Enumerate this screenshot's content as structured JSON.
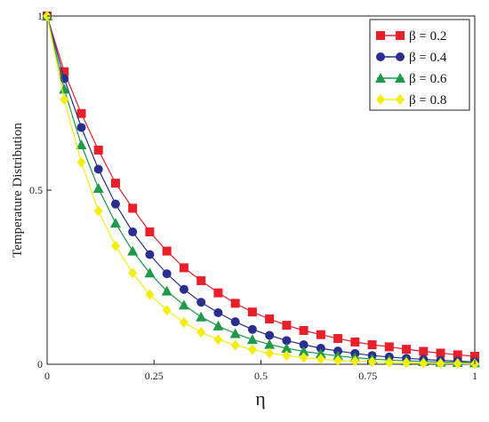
{
  "chart_data": {
    "type": "line",
    "xlabel": "η",
    "ylabel": "Temperature Distribution",
    "xlim": [
      0,
      1
    ],
    "ylim": [
      0,
      1
    ],
    "x_ticks": [
      "0",
      "0.25",
      "0.5",
      "0.75",
      "1"
    ],
    "y_ticks": [
      "0",
      "0.5",
      "1"
    ],
    "grid": false,
    "legend_position": "top-right",
    "x": [
      0,
      0.04,
      0.08,
      0.12,
      0.16,
      0.2,
      0.24,
      0.28,
      0.32,
      0.36,
      0.4,
      0.44,
      0.48,
      0.52,
      0.56,
      0.6,
      0.64,
      0.68,
      0.72,
      0.76,
      0.8,
      0.84,
      0.88,
      0.92,
      0.96,
      1.0
    ],
    "series": [
      {
        "name": "β = 0.2",
        "color": "#e8202a",
        "marker": "square",
        "values": [
          1.0,
          0.84,
          0.72,
          0.615,
          0.52,
          0.448,
          0.38,
          0.325,
          0.277,
          0.24,
          0.205,
          0.175,
          0.15,
          0.13,
          0.112,
          0.097,
          0.085,
          0.074,
          0.064,
          0.056,
          0.05,
          0.043,
          0.037,
          0.032,
          0.027,
          0.023
        ]
      },
      {
        "name": "β = 0.4",
        "color": "#2a2f8f",
        "marker": "circle",
        "values": [
          1.0,
          0.82,
          0.68,
          0.56,
          0.46,
          0.38,
          0.315,
          0.26,
          0.215,
          0.178,
          0.148,
          0.122,
          0.1,
          0.083,
          0.068,
          0.056,
          0.046,
          0.038,
          0.031,
          0.025,
          0.021,
          0.017,
          0.014,
          0.011,
          0.009,
          0.007
        ]
      },
      {
        "name": "β = 0.6",
        "color": "#1e9a4a",
        "marker": "triangle",
        "values": [
          1.0,
          0.79,
          0.63,
          0.505,
          0.405,
          0.325,
          0.262,
          0.21,
          0.17,
          0.136,
          0.11,
          0.088,
          0.071,
          0.057,
          0.046,
          0.037,
          0.03,
          0.024,
          0.019,
          0.015,
          0.012,
          0.01,
          0.008,
          0.006,
          0.005,
          0.004
        ]
      },
      {
        "name": "β = 0.8",
        "color": "#f2ee12",
        "marker": "diamond",
        "values": [
          1.0,
          0.76,
          0.58,
          0.44,
          0.34,
          0.262,
          0.2,
          0.155,
          0.12,
          0.092,
          0.071,
          0.055,
          0.042,
          0.032,
          0.025,
          0.019,
          0.015,
          0.011,
          0.009,
          0.007,
          0.005,
          0.004,
          0.003,
          0.002,
          0.002,
          0.001
        ]
      }
    ]
  }
}
